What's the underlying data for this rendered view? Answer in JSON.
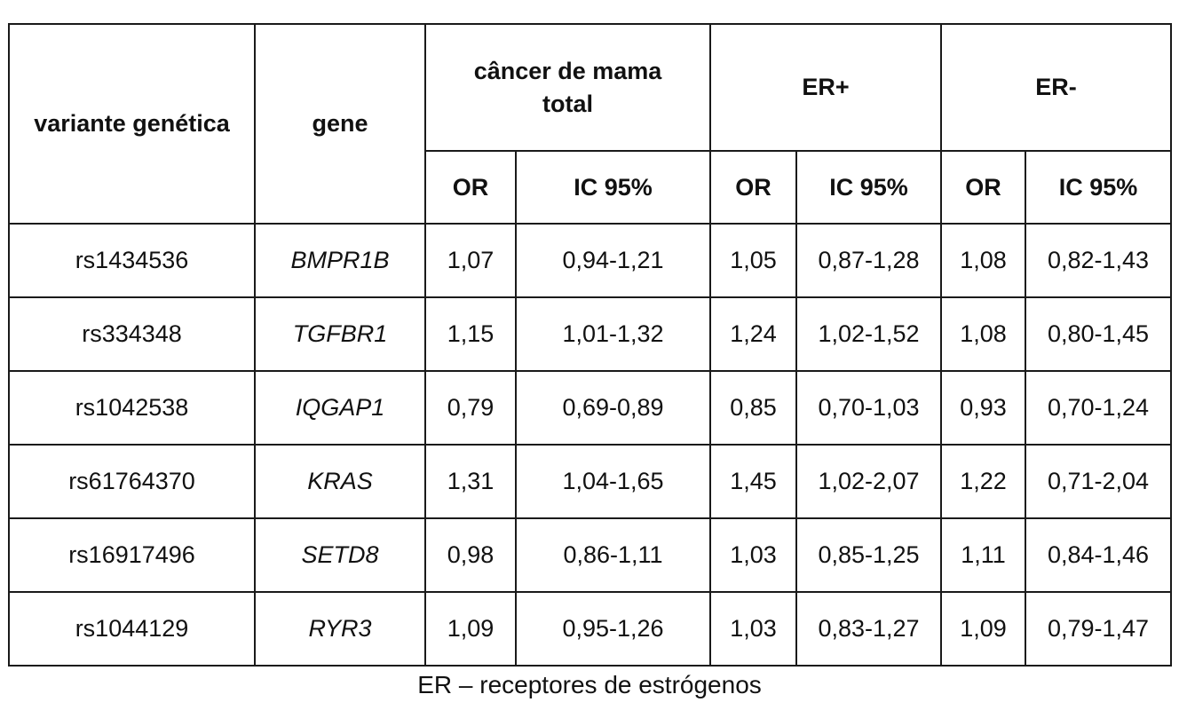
{
  "header": {
    "variant": "variante genética",
    "gene": "gene",
    "groups": [
      "câncer de mama total",
      "ER+",
      "ER-"
    ],
    "sub": [
      "OR",
      "IC 95%",
      "OR",
      "IC 95%",
      "OR",
      "IC 95%"
    ]
  },
  "rows": [
    {
      "variant": "rs1434536",
      "gene": "BMPR1B",
      "total_or": "1,07",
      "total_ic": "0,94-1,21",
      "erp_or": "1,05",
      "erp_ic": "0,87-1,28",
      "ern_or": "1,08",
      "ern_ic": "0,82-1,43"
    },
    {
      "variant": "rs334348",
      "gene": "TGFBR1",
      "total_or": "1,15",
      "total_ic": "1,01-1,32",
      "erp_or": "1,24",
      "erp_ic": "1,02-1,52",
      "ern_or": "1,08",
      "ern_ic": "0,80-1,45"
    },
    {
      "variant": "rs1042538",
      "gene": "IQGAP1",
      "total_or": "0,79",
      "total_ic": "0,69-0,89",
      "erp_or": "0,85",
      "erp_ic": "0,70-1,03",
      "ern_or": "0,93",
      "ern_ic": "0,70-1,24"
    },
    {
      "variant": "rs61764370",
      "gene": "KRAS",
      "total_or": "1,31",
      "total_ic": "1,04-1,65",
      "erp_or": "1,45",
      "erp_ic": "1,02-2,07",
      "ern_or": "1,22",
      "ern_ic": "0,71-2,04"
    },
    {
      "variant": "rs16917496",
      "gene": "SETD8",
      "total_or": "0,98",
      "total_ic": "0,86-1,11",
      "erp_or": "1,03",
      "erp_ic": "0,85-1,25",
      "ern_or": "1,11",
      "ern_ic": "0,84-1,46"
    },
    {
      "variant": "rs1044129",
      "gene": "RYR3",
      "total_or": "1,09",
      "total_ic": "0,95-1,26",
      "erp_or": "1,03",
      "erp_ic": "0,83-1,27",
      "ern_or": "1,09",
      "ern_ic": "0,79-1,47"
    }
  ],
  "footnote": "ER – receptores de estrógenos"
}
